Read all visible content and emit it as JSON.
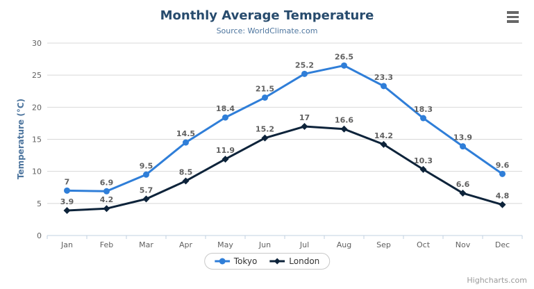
{
  "header": {
    "title": "Monthly Average Temperature",
    "subtitle": "Source: WorldClimate.com"
  },
  "toolbar": {
    "context_menu_icon": "hamburger-icon"
  },
  "credits": {
    "label": "Highcharts.com"
  },
  "chart_data": {
    "type": "line",
    "title": "Monthly Average Temperature",
    "subtitle": "Source: WorldClimate.com",
    "categories": [
      "Jan",
      "Feb",
      "Mar",
      "Apr",
      "May",
      "Jun",
      "Jul",
      "Aug",
      "Sep",
      "Oct",
      "Nov",
      "Dec"
    ],
    "series": [
      {
        "name": "Tokyo",
        "color": "#2f7ed8",
        "marker": "circle",
        "values": [
          7,
          6.9,
          9.5,
          14.5,
          18.4,
          21.5,
          25.2,
          26.5,
          23.3,
          18.3,
          13.9,
          9.6
        ]
      },
      {
        "name": "London",
        "color": "#0d233a",
        "marker": "diamond",
        "values": [
          3.9,
          4.2,
          5.7,
          8.5,
          11.9,
          15.2,
          17,
          16.6,
          14.2,
          10.3,
          6.6,
          4.8
        ]
      }
    ],
    "xlabel": "",
    "ylabel": "Temperature (°C)",
    "ylim": [
      0,
      30
    ],
    "ytick_step": 5,
    "yticks": [
      0,
      5,
      10,
      15,
      20,
      25,
      30
    ],
    "grid": true,
    "grid_color": "#d8d8d8",
    "axis_line_color": "#c0d0e0",
    "axis_label_color": "#606060",
    "data_label_color": "#606060",
    "data_labels": true,
    "legend_position": "bottom"
  }
}
